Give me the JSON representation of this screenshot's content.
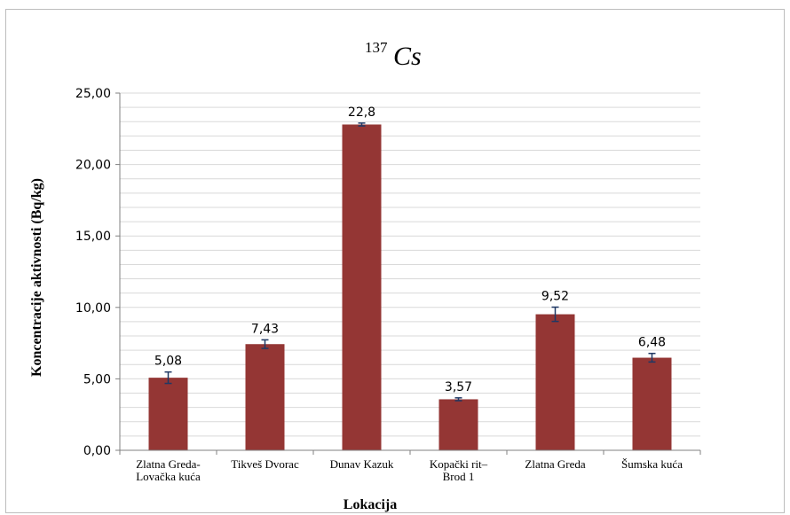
{
  "chart_data": {
    "type": "bar",
    "title_superscript": "137",
    "title": "Cs",
    "xlabel": "Lokacija",
    "ylabel": "Koncentracije aktivnosti (Bq/kg)",
    "categories": [
      [
        "Zlatna Greda-",
        "Lovačka kuća"
      ],
      [
        "Tikveš Dvorac"
      ],
      [
        "Dunav Kazuk"
      ],
      [
        "Kopački rit–",
        "Brod 1"
      ],
      [
        "Zlatna Greda"
      ],
      [
        "Šumska kuća"
      ]
    ],
    "values": [
      5.08,
      7.43,
      22.8,
      3.57,
      9.52,
      6.48
    ],
    "value_labels": [
      "5,08",
      "7,43",
      "22,8",
      "3,57",
      "9,52",
      "6,48"
    ],
    "error": [
      0.4,
      0.3,
      0.1,
      0.1,
      0.5,
      0.3
    ],
    "ylim": [
      0,
      25
    ],
    "yticks": [
      0,
      5,
      10,
      15,
      20,
      25
    ],
    "ytick_labels": [
      "0,00",
      "5,00",
      "10,00",
      "15,00",
      "20,00",
      "25,00"
    ],
    "minor_grid_step": 1,
    "grid": true,
    "legend": "none",
    "colors": {
      "bar": "#943634",
      "error_bar": "#1f3864",
      "grid": "#d9d9d9",
      "axis": "#808080"
    }
  }
}
